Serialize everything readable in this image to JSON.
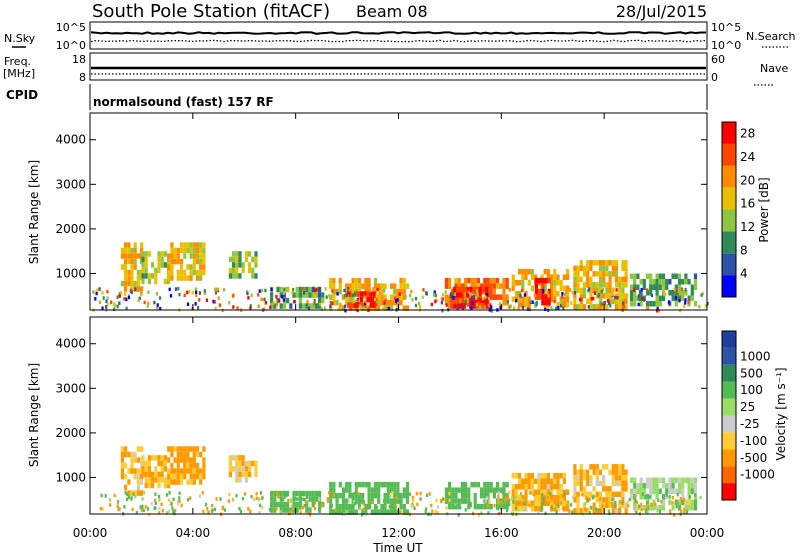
{
  "header": {
    "station": "South Pole Station (fitACF)",
    "beam": "Beam 08",
    "date": "28/Jul/2015"
  },
  "side_labels": {
    "nsky": "N.Sky",
    "nsearch": "N.Search",
    "freq": "Freq.",
    "mhz": "[MHz]",
    "nave": "Nave",
    "cpid": "CPID"
  },
  "noise_axis": {
    "left_ticks": [
      "10^5",
      "10^0"
    ],
    "right_ticks": [
      "10^5",
      "10^0"
    ]
  },
  "freq_axis": {
    "left_ticks": [
      "18",
      "8"
    ],
    "right_ticks": [
      "60",
      "0"
    ]
  },
  "cpid_text": "normalsound (fast) 157 RF",
  "time_axis": {
    "label": "Time UT",
    "ticks": [
      "00:00",
      "04:00",
      "08:00",
      "12:00",
      "16:00",
      "20:00",
      "00:00"
    ]
  },
  "colors": {
    "power_scale": [
      "#0000ff",
      "#2d52a8",
      "#2e8b57",
      "#8ec73f",
      "#e8c000",
      "#ff8c00",
      "#ff4500",
      "#ff0000"
    ],
    "velocity_scale": [
      "#ff0000",
      "#ff6600",
      "#ff9900",
      "#ffcc33",
      "#cccccc",
      "#99dd66",
      "#55bb55",
      "#2e8b57",
      "#2d52a8",
      "#1f3fa0"
    ]
  },
  "chart_data": [
    {
      "type": "heatmap",
      "name": "power",
      "ylabel": "Slant Range [km]",
      "xlabel": "",
      "yticks": [
        1000,
        2000,
        3000,
        4000
      ],
      "ylim": [
        180,
        4600
      ],
      "xlim_hours": [
        0,
        24
      ],
      "colorbar": {
        "label": "Power [dB]",
        "ticks": [
          4,
          8,
          12,
          16,
          20,
          24,
          28
        ],
        "range": [
          0,
          30
        ]
      },
      "regions": [
        {
          "t0": 1.2,
          "t1": 2.0,
          "r0": 700,
          "r1": 1700,
          "value": 18
        },
        {
          "t0": 2.0,
          "t1": 3.0,
          "r0": 800,
          "r1": 1500,
          "value": 14
        },
        {
          "t0": 3.0,
          "t1": 4.4,
          "r0": 900,
          "r1": 1700,
          "value": 17
        },
        {
          "t0": 5.4,
          "t1": 6.4,
          "r0": 900,
          "r1": 1500,
          "value": 13
        },
        {
          "t0": 7.0,
          "t1": 9.0,
          "r0": 250,
          "r1": 700,
          "value": 10
        },
        {
          "t0": 9.3,
          "t1": 12.3,
          "r0": 250,
          "r1": 900,
          "value": 18
        },
        {
          "t0": 10.0,
          "t1": 11.0,
          "r0": 250,
          "r1": 600,
          "value": 27
        },
        {
          "t0": 13.8,
          "t1": 16.2,
          "r0": 300,
          "r1": 900,
          "value": 22
        },
        {
          "t0": 14.0,
          "t1": 15.5,
          "r0": 300,
          "r1": 700,
          "value": 27
        },
        {
          "t0": 16.4,
          "t1": 18.6,
          "r0": 300,
          "r1": 1100,
          "value": 18
        },
        {
          "t0": 17.3,
          "t1": 17.9,
          "r0": 400,
          "r1": 900,
          "value": 28
        },
        {
          "t0": 18.8,
          "t1": 20.8,
          "r0": 300,
          "r1": 1300,
          "value": 17
        },
        {
          "t0": 21.0,
          "t1": 23.6,
          "r0": 300,
          "r1": 1000,
          "value": 11
        }
      ]
    },
    {
      "type": "heatmap",
      "name": "velocity",
      "ylabel": "Slant Range [km]",
      "xlabel": "Time UT",
      "yticks": [
        1000,
        2000,
        3000,
        4000
      ],
      "ylim": [
        180,
        4600
      ],
      "xlim_hours": [
        0,
        24
      ],
      "colorbar": {
        "label": "Velocity [m s⁻¹]",
        "ticks": [
          -1000,
          -500,
          -100,
          -25,
          25,
          100,
          500,
          1000
        ]
      },
      "regions": [
        {
          "t0": 1.2,
          "t1": 2.0,
          "r0": 700,
          "r1": 1700,
          "value": -100
        },
        {
          "t0": 2.0,
          "t1": 3.0,
          "r0": 800,
          "r1": 1500,
          "value": -100
        },
        {
          "t0": 3.0,
          "t1": 4.4,
          "r0": 900,
          "r1": 1700,
          "value": -150
        },
        {
          "t0": 5.4,
          "t1": 6.4,
          "r0": 900,
          "r1": 1500,
          "value": -60
        },
        {
          "t0": 7.0,
          "t1": 9.0,
          "r0": 250,
          "r1": 700,
          "value": 300
        },
        {
          "t0": 9.3,
          "t1": 12.3,
          "r0": 250,
          "r1": 900,
          "value": 200
        },
        {
          "t0": 13.8,
          "t1": 16.2,
          "r0": 300,
          "r1": 900,
          "value": 300
        },
        {
          "t0": 16.4,
          "t1": 18.6,
          "r0": 300,
          "r1": 1100,
          "value": -100
        },
        {
          "t0": 18.8,
          "t1": 20.8,
          "r0": 300,
          "r1": 1300,
          "value": -100
        },
        {
          "t0": 21.0,
          "t1": 23.6,
          "r0": 300,
          "r1": 1000,
          "value": 50
        }
      ]
    }
  ]
}
